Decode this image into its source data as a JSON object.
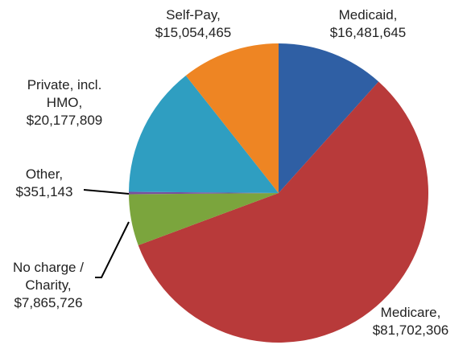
{
  "chart_data": {
    "type": "pie",
    "categories": [
      "Medicaid,",
      "Medicare,",
      "No charge / Charity,",
      "Other,",
      "Private, incl. HMO,",
      "Self-Pay,"
    ],
    "values": [
      16481645,
      81702306,
      7865726,
      351143,
      20177809,
      15054465
    ],
    "value_labels": [
      "$16,481,645",
      "$81,702,306",
      "$7,865,726",
      "$351,143",
      "$20,177,809",
      "$15,054,465"
    ],
    "colors": [
      "#2f5fa4",
      "#b83a3a",
      "#7ba53d",
      "#7a4f9e",
      "#2f9ec1",
      "#ee8523"
    ]
  }
}
